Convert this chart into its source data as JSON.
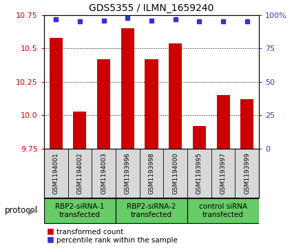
{
  "title": "GDS5355 / ILMN_1659240",
  "samples": [
    "GSM1194001",
    "GSM1194002",
    "GSM1194003",
    "GSM1193996",
    "GSM1193998",
    "GSM1194000",
    "GSM1193995",
    "GSM1193997",
    "GSM1193999"
  ],
  "bar_values": [
    10.58,
    10.03,
    10.42,
    10.65,
    10.42,
    10.54,
    9.92,
    10.15,
    10.12
  ],
  "percentile_values": [
    97,
    95,
    96,
    98,
    96,
    97,
    95,
    95,
    95
  ],
  "ylim_left": [
    9.75,
    10.75
  ],
  "ylim_right": [
    0,
    100
  ],
  "yticks_left": [
    9.75,
    10.0,
    10.25,
    10.5,
    10.75
  ],
  "yticks_right": [
    0,
    25,
    50,
    75,
    100
  ],
  "bar_color": "#cc0000",
  "dot_color": "#3333cc",
  "group_labels": [
    "RBP2-siRNA-1\ntransfected",
    "RBP2-siRNA-2\ntransfected",
    "control siRNA\ntransfected"
  ],
  "group_color": "#66cc66",
  "group_ranges": [
    [
      0,
      3
    ],
    [
      3,
      6
    ],
    [
      6,
      9
    ]
  ],
  "sample_bg_color": "#d8d8d8",
  "protocol_label": "protocol",
  "legend_bar_label": "transformed count",
  "legend_dot_label": "percentile rank within the sample"
}
